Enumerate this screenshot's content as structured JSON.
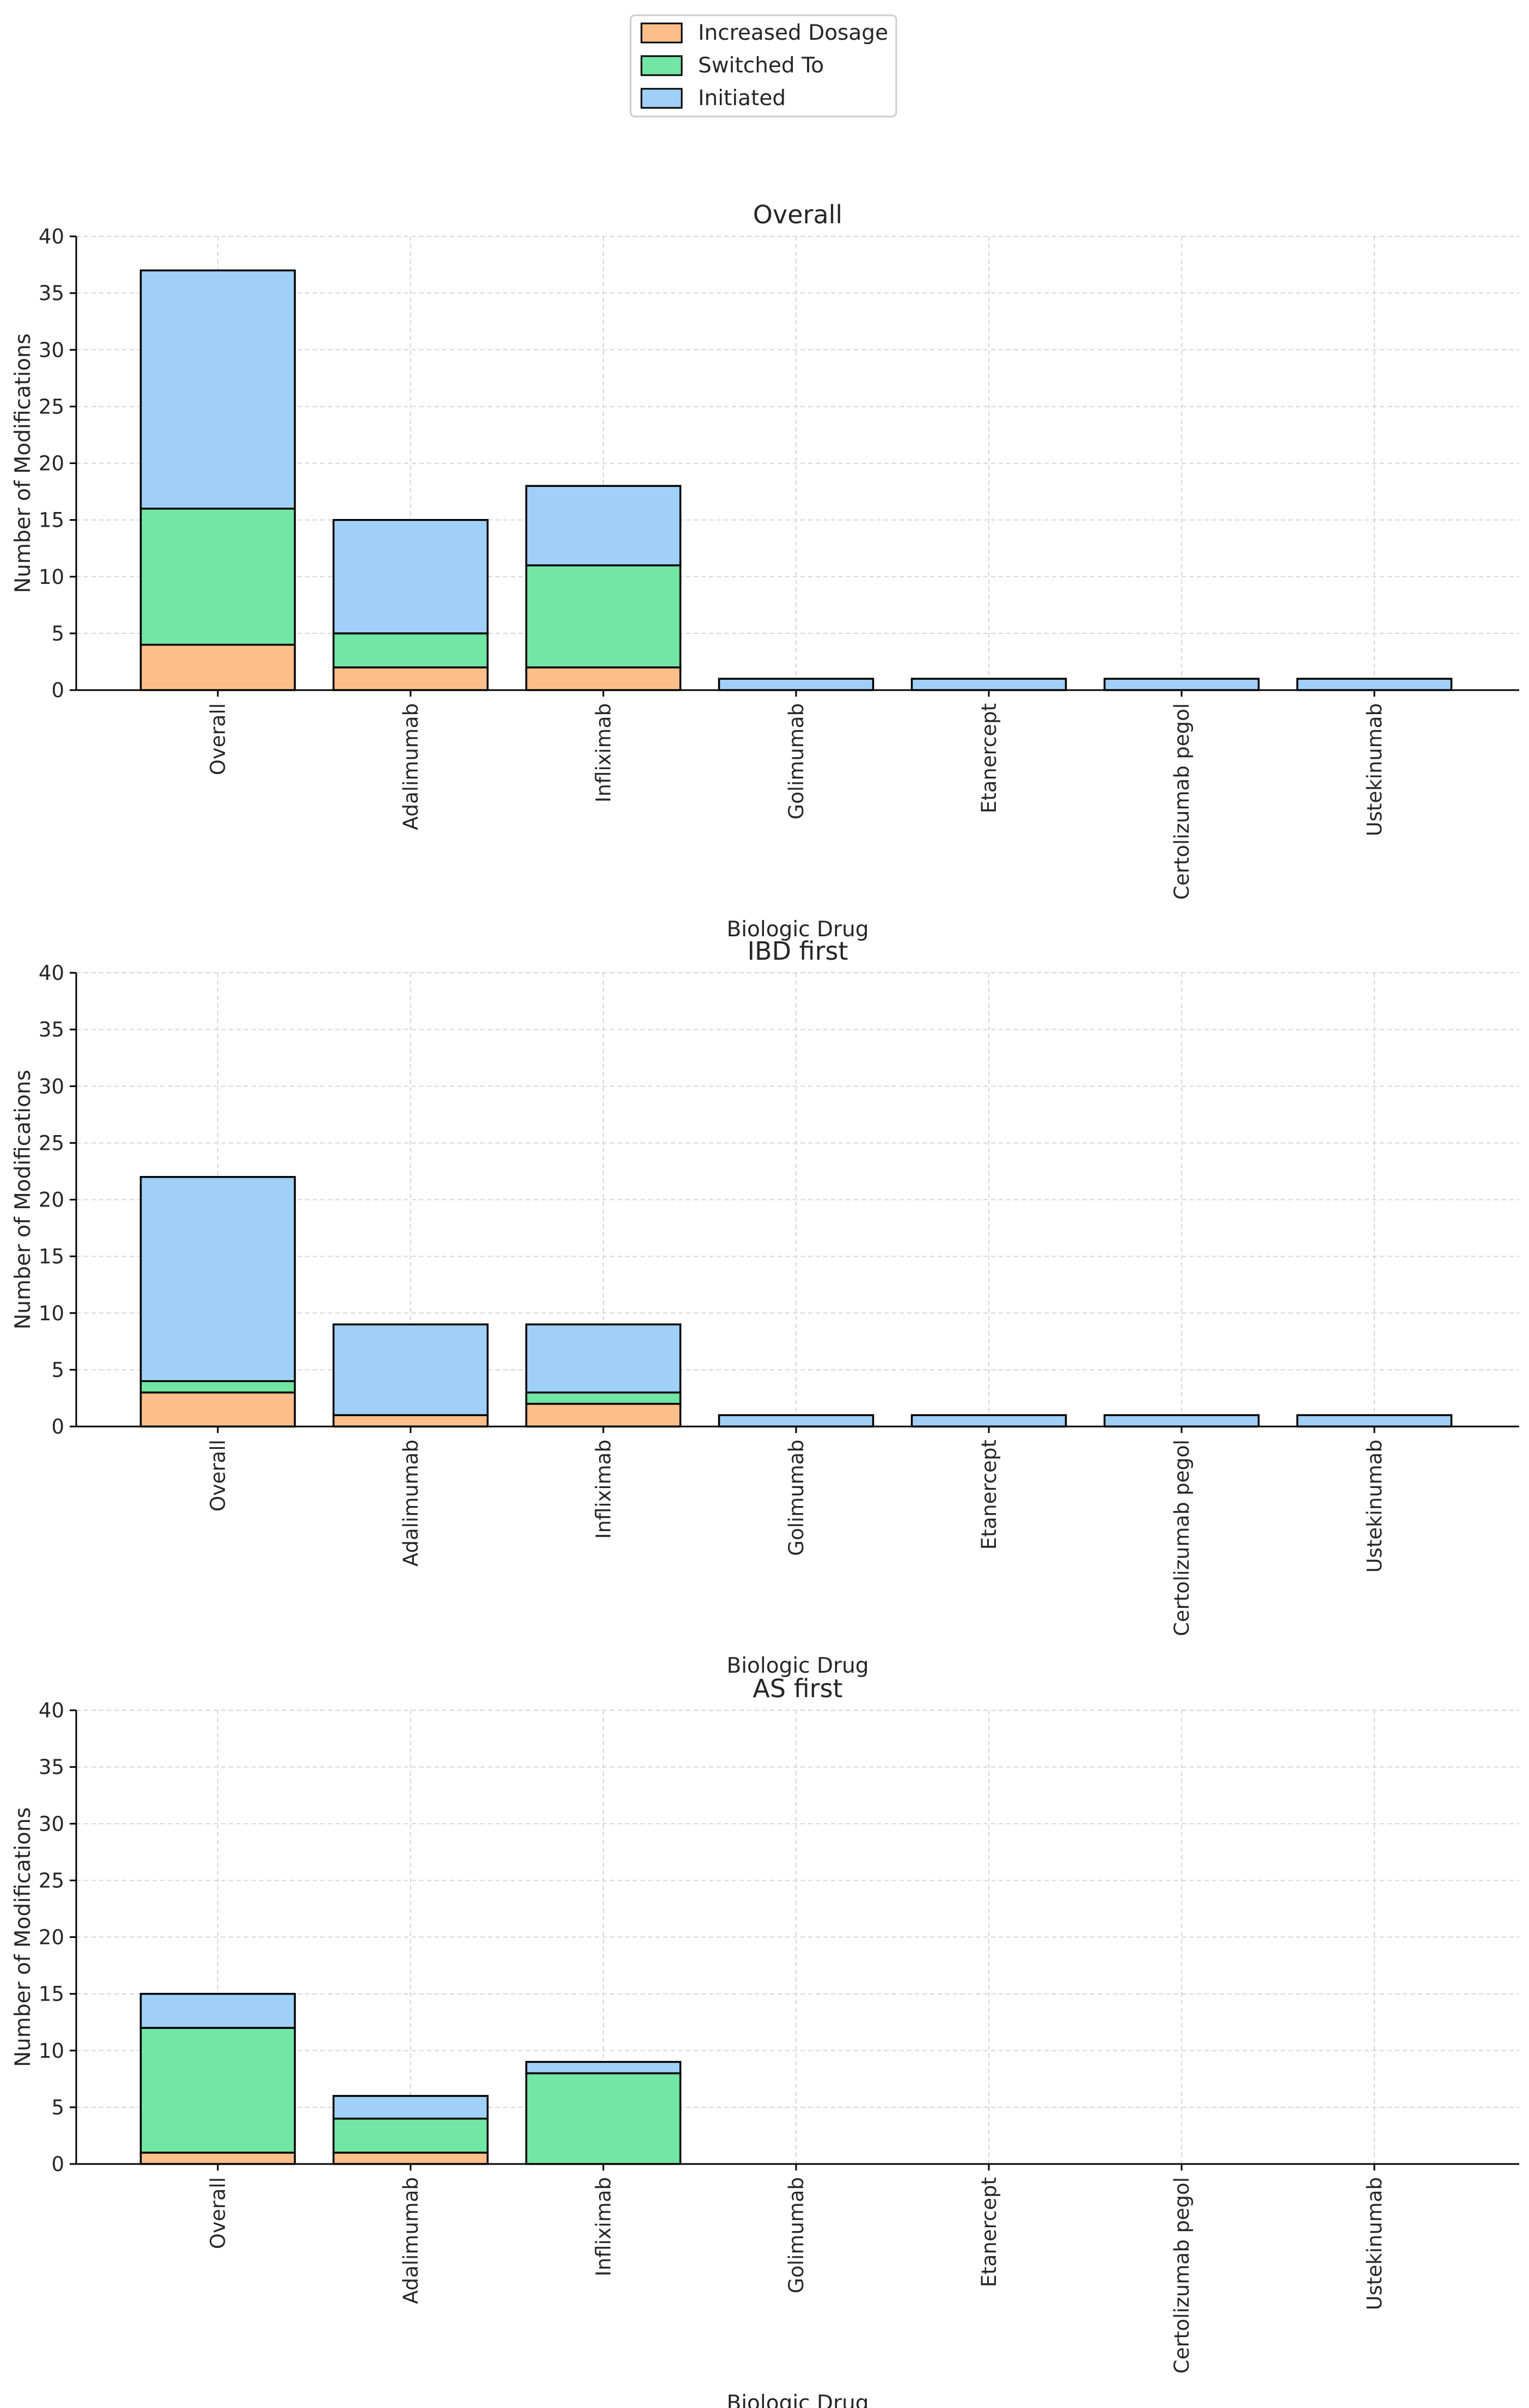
{
  "chart_data": {
    "type": "bar",
    "stacked": true,
    "legend": {
      "placement": "top-center",
      "entries": [
        {
          "name": "Increased Dosage",
          "color": "#fdbf8a"
        },
        {
          "name": "Switched To",
          "color": "#72e6a4"
        },
        {
          "name": "Initiated",
          "color": "#a0d0f7"
        }
      ]
    },
    "categories": [
      "Overall",
      "Adalimumab",
      "Infliximab",
      "Golimumab",
      "Etanercept",
      "Certolizumab pegol",
      "Ustekinumab"
    ],
    "yticks": [
      "0",
      "5",
      "10",
      "15",
      "20",
      "25",
      "30",
      "35",
      "40"
    ],
    "grid": true,
    "panels": [
      {
        "title": "Overall",
        "xlabel": "Biologic Drug",
        "ylabel": "Number of Modifications",
        "ylim": [
          0,
          40
        ],
        "series": [
          {
            "name": "Increased Dosage",
            "values": [
              4,
              2,
              2,
              0,
              0,
              0,
              0
            ]
          },
          {
            "name": "Switched To",
            "values": [
              12,
              3,
              9,
              0,
              0,
              0,
              0
            ]
          },
          {
            "name": "Initiated",
            "values": [
              21,
              10,
              7,
              1,
              1,
              1,
              1
            ]
          }
        ]
      },
      {
        "title": "IBD first",
        "xlabel": "Biologic Drug",
        "ylabel": "Number of Modifications",
        "ylim": [
          0,
          40
        ],
        "series": [
          {
            "name": "Increased Dosage",
            "values": [
              3,
              1,
              2,
              0,
              0,
              0,
              0
            ]
          },
          {
            "name": "Switched To",
            "values": [
              1,
              0,
              1,
              0,
              0,
              0,
              0
            ]
          },
          {
            "name": "Initiated",
            "values": [
              18,
              8,
              6,
              1,
              1,
              1,
              1
            ]
          }
        ]
      },
      {
        "title": "AS first",
        "xlabel": "Biologic Drug",
        "ylabel": "Number of Modifications",
        "ylim": [
          0,
          40
        ],
        "series": [
          {
            "name": "Increased Dosage",
            "values": [
              1,
              1,
              0,
              0,
              0,
              0,
              0
            ]
          },
          {
            "name": "Switched To",
            "values": [
              11,
              3,
              8,
              0,
              0,
              0,
              0
            ]
          },
          {
            "name": "Initiated",
            "values": [
              3,
              2,
              1,
              0,
              0,
              0,
              0
            ]
          }
        ]
      }
    ]
  }
}
